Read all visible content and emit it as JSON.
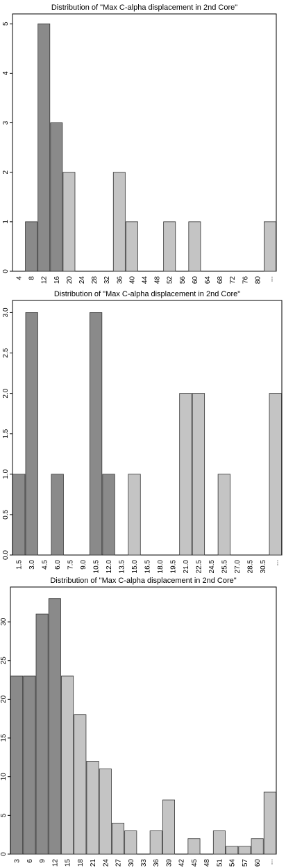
{
  "colors": {
    "dark_bar": "#8a8a8a",
    "light_bar": "#c4c4c4",
    "bar_stroke": "#333333"
  },
  "chart_data": [
    {
      "type": "bar",
      "title": "Distribution of \"Max C-alpha displacement in 2nd Core\"",
      "xlabel": "",
      "ylabel": "",
      "categories": [
        "4",
        "8",
        "12",
        "16",
        "20",
        "24",
        "28",
        "32",
        "36",
        "40",
        "44",
        "48",
        "52",
        "56",
        "60",
        "64",
        "68",
        "72",
        "76",
        "80",
        "..."
      ],
      "values": [
        0,
        1,
        5,
        3,
        2,
        0,
        0,
        0,
        2,
        1,
        0,
        0,
        1,
        0,
        1,
        0,
        0,
        0,
        0,
        0,
        1
      ],
      "shade": [
        "dark",
        "dark",
        "dark",
        "dark",
        "light",
        "light",
        "light",
        "light",
        "light",
        "light",
        "light",
        "light",
        "light",
        "light",
        "light",
        "light",
        "light",
        "light",
        "light",
        "light",
        "light"
      ],
      "yticks": [
        "0",
        "1",
        "2",
        "3",
        "4",
        "5"
      ],
      "ylim": [
        0,
        5.2
      ],
      "grid": false
    },
    {
      "type": "bar",
      "title": "Distribution of \"Max C-alpha displacement in 2nd Core\"",
      "xlabel": "",
      "ylabel": "",
      "categories": [
        "1.5",
        "3.0",
        "4.5",
        "6.0",
        "7.5",
        "9.0",
        "10.5",
        "12.0",
        "13.5",
        "15.0",
        "16.5",
        "18.0",
        "19.5",
        "21.0",
        "22.5",
        "24.5",
        "25.5",
        "27.0",
        "28.5",
        "30.5",
        "..."
      ],
      "values": [
        1,
        3,
        0,
        1,
        0,
        0,
        3,
        1,
        0,
        1,
        0,
        0,
        0,
        2,
        2,
        0,
        1,
        0,
        0,
        0,
        2
      ],
      "shade": [
        "dark",
        "dark",
        "dark",
        "dark",
        "dark",
        "dark",
        "dark",
        "dark",
        "light",
        "light",
        "light",
        "light",
        "light",
        "light",
        "light",
        "light",
        "light",
        "light",
        "light",
        "light",
        "light"
      ],
      "yticks": [
        "0.0",
        "0.5",
        "1.0",
        "1.5",
        "2.0",
        "2.5",
        "3.0"
      ],
      "ylim": [
        0,
        3.15
      ],
      "grid": false
    },
    {
      "type": "bar",
      "title": "Distribution of \"Max C-alpha displacement in 2nd Core\"",
      "xlabel": "",
      "ylabel": "",
      "categories": [
        "3",
        "6",
        "9",
        "12",
        "15",
        "18",
        "21",
        "24",
        "27",
        "30",
        "33",
        "36",
        "39",
        "42",
        "45",
        "48",
        "51",
        "54",
        "57",
        "60",
        "..."
      ],
      "values": [
        23,
        23,
        31,
        33,
        23,
        18,
        12,
        11,
        4,
        3,
        0,
        3,
        7,
        0,
        2,
        0,
        3,
        1,
        1,
        2,
        8
      ],
      "shade": [
        "dark",
        "dark",
        "dark",
        "dark",
        "light",
        "light",
        "light",
        "light",
        "light",
        "light",
        "light",
        "light",
        "light",
        "light",
        "light",
        "light",
        "light",
        "light",
        "light",
        "light",
        "light"
      ],
      "yticks": [
        "0",
        "5",
        "10",
        "15",
        "20",
        "25",
        "30"
      ],
      "ylim": [
        0,
        34.5
      ],
      "grid": false
    }
  ]
}
